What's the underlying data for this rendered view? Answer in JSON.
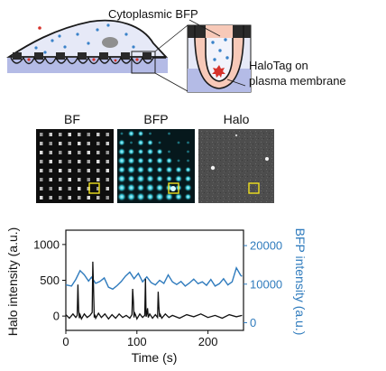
{
  "schematic": {
    "label_cytoplasmic": "Cytoplasmic BFP",
    "label_halotag_line1": "HaloTag on",
    "label_halotag_line2": "plasma membrane",
    "colors": {
      "cell_fill": "#e6e9f7",
      "substrate": "#b4bbe6",
      "dots": "#3a82c9",
      "marks": "#d6332c",
      "pillars": "#2a2a2a"
    }
  },
  "panels": [
    {
      "label": "BF"
    },
    {
      "label": "BFP"
    },
    {
      "label": "Halo"
    }
  ],
  "chart_data": {
    "type": "line",
    "xlabel": "Time (s)",
    "ylabel_left": "Halo intensity (a.u.)",
    "ylabel_right": "BFP intensity (a.u.)",
    "xlim": [
      0,
      250
    ],
    "ylim_left": [
      -200,
      1200
    ],
    "ylim_right": [
      -2000,
      24000
    ],
    "x_ticks": [
      "0",
      "100",
      "200"
    ],
    "y_ticks_left": [
      "0",
      "500",
      "1000"
    ],
    "y_ticks_right": [
      "0",
      "10000",
      "20000"
    ],
    "colors": {
      "halo": "#111111",
      "bfp": "#2f7bbd"
    },
    "series": [
      {
        "axis": "left",
        "color": "#111111",
        "x": [
          0,
          5,
          10,
          14,
          16,
          17,
          18,
          19,
          20,
          22,
          26,
          30,
          34,
          37,
          38,
          39,
          40,
          41,
          42,
          46,
          50,
          55,
          60,
          65,
          70,
          75,
          80,
          85,
          90,
          93,
          94,
          95,
          96,
          97,
          98,
          100,
          104,
          108,
          111,
          112,
          113,
          114,
          115,
          116,
          118,
          122,
          126,
          129,
          130,
          131,
          132,
          133,
          135,
          140,
          145,
          150,
          160,
          170,
          180,
          190,
          200,
          210,
          220,
          230,
          240,
          248
        ],
        "y": [
          20,
          -30,
          30,
          -20,
          10,
          440,
          80,
          -30,
          20,
          -40,
          30,
          -20,
          10,
          50,
          760,
          400,
          -20,
          20,
          -30,
          40,
          -20,
          30,
          -40,
          20,
          -30,
          30,
          -20,
          10,
          -30,
          20,
          380,
          210,
          -20,
          40,
          20,
          -40,
          30,
          -20,
          10,
          520,
          -10,
          30,
          110,
          -20,
          30,
          -30,
          20,
          -20,
          340,
          120,
          -10,
          20,
          -30,
          30,
          -20,
          10,
          -30,
          20,
          -10,
          30,
          -20,
          10,
          -30,
          20,
          -10,
          10
        ]
      },
      {
        "axis": "right",
        "color": "#2f7bbd",
        "x": [
          0,
          8,
          14,
          20,
          26,
          32,
          36,
          42,
          48,
          54,
          60,
          66,
          72,
          78,
          84,
          90,
          96,
          102,
          108,
          114,
          120,
          126,
          132,
          138,
          144,
          150,
          156,
          162,
          168,
          174,
          180,
          186,
          192,
          198,
          204,
          210,
          216,
          222,
          228,
          234,
          240,
          246,
          248
        ],
        "y": [
          9800,
          9500,
          11200,
          13500,
          12400,
          10800,
          11800,
          10200,
          10700,
          11600,
          9200,
          8700,
          9600,
          10700,
          12100,
          13100,
          11400,
          12800,
          10600,
          11900,
          10400,
          9800,
          11000,
          10200,
          12400,
          10600,
          9900,
          10700,
          9500,
          10300,
          11300,
          10100,
          10600,
          9700,
          11200,
          9500,
          10100,
          11400,
          9800,
          10600,
          14200,
          12300,
          12000
        ]
      }
    ]
  }
}
